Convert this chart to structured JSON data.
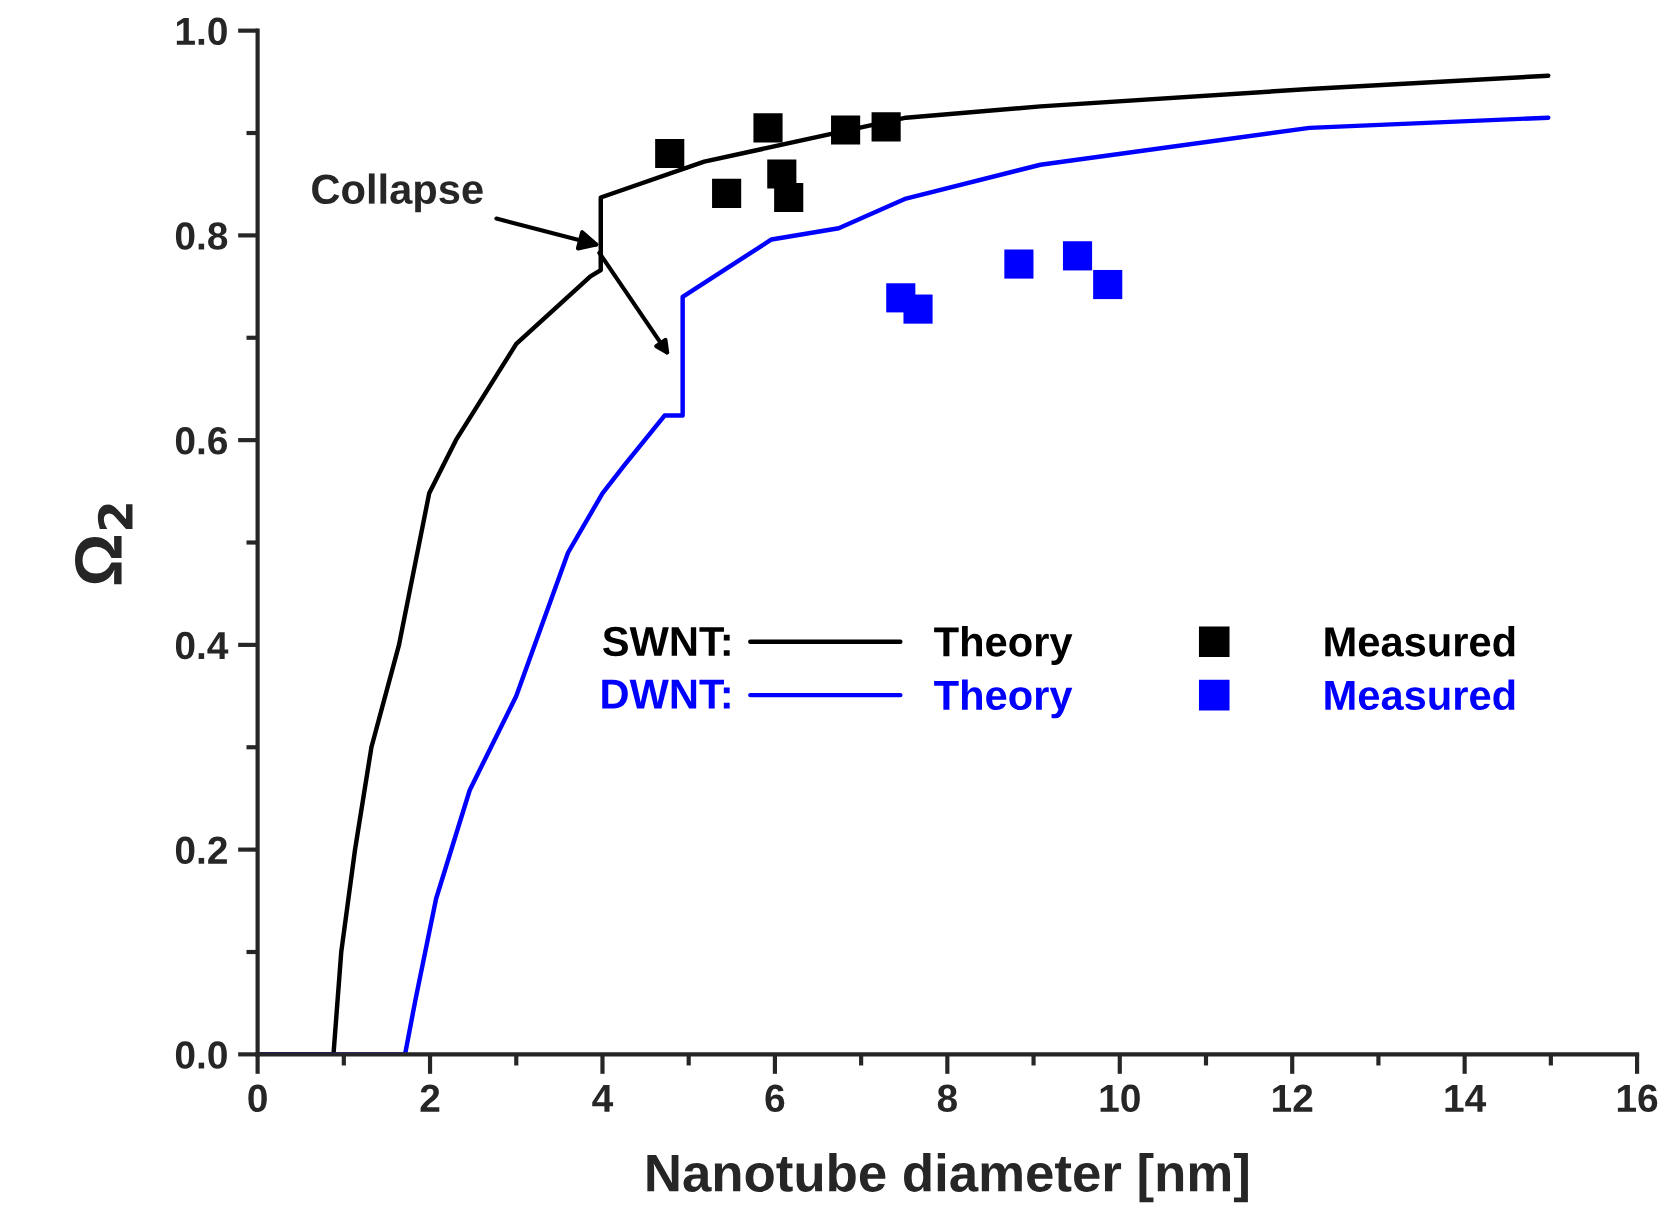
{
  "chart_data": {
    "type": "line",
    "xlabel": "Nanotube diameter [nm]",
    "ylabel": "Ω$_{2}$",
    "xlim": [
      0,
      16
    ],
    "xticks": [
      0,
      2,
      4,
      6,
      8,
      10,
      12,
      14,
      16
    ],
    "ylim": [
      0,
      1.0
    ],
    "yticks": [
      {
        "value": 0,
        "label": "0.0"
      },
      {
        "value": 0.2,
        "label": "0.2"
      },
      {
        "value": 0.4,
        "label": "0.4"
      },
      {
        "value": 0.6,
        "label": "0.6"
      },
      {
        "value": 0.8,
        "label": "0.8"
      },
      {
        "value": 1.0,
        "label": "1.0"
      }
    ],
    "grid": false,
    "legend": "right",
    "annotations": [
      {
        "text": "Collapse",
        "x": 3.98,
        "y": 0.79
      },
      "SWNT:",
      "DWNT:"
    ],
    "series": [
      {
        "name": "Theory",
        "color": "#000000",
        "x": [
          0,
          0.88,
          0.97,
          1.13,
          1.32,
          1.64,
          1.99,
          2.3,
          3.0,
          3.86,
          3.98,
          3.98,
          5.18,
          7.52,
          9.08,
          12.2,
          14.97
        ],
        "values": [
          0,
          0,
          0.1,
          0.2,
          0.3,
          0.4,
          0.548,
          0.6,
          0.694,
          0.76,
          0.766,
          0.837,
          0.872,
          0.915,
          0.926,
          0.943,
          0.956
        ]
      },
      {
        "name": "Theory",
        "color": "#0000ff",
        "x": [
          0,
          1.71,
          1.83,
          2.07,
          2.46,
          3.0,
          3.6,
          4.0,
          4.25,
          4.72,
          4.93,
          4.93,
          5.96,
          6.74,
          7.52,
          9.08,
          12.2,
          14.97
        ],
        "values": [
          0,
          0,
          0.053,
          0.152,
          0.258,
          0.35,
          0.49,
          0.548,
          0.575,
          0.624,
          0.624,
          0.74,
          0.796,
          0.807,
          0.836,
          0.869,
          0.905,
          0.915
        ]
      },
      {
        "name": "Measured",
        "type": "scatter",
        "marker": "square",
        "color": "#000000",
        "x": [
          4.78,
          5.44,
          5.92,
          6.08,
          6.16,
          6.82,
          7.29
        ],
        "values": [
          0.88,
          0.841,
          0.905,
          0.86,
          0.837,
          0.903,
          0.906
        ]
      },
      {
        "name": "Measured",
        "type": "scatter",
        "marker": "square",
        "color": "#0000ff",
        "x": [
          7.46,
          7.66,
          8.83,
          9.51,
          9.86
        ],
        "values": [
          0.739,
          0.728,
          0.772,
          0.78,
          0.752
        ]
      }
    ]
  }
}
